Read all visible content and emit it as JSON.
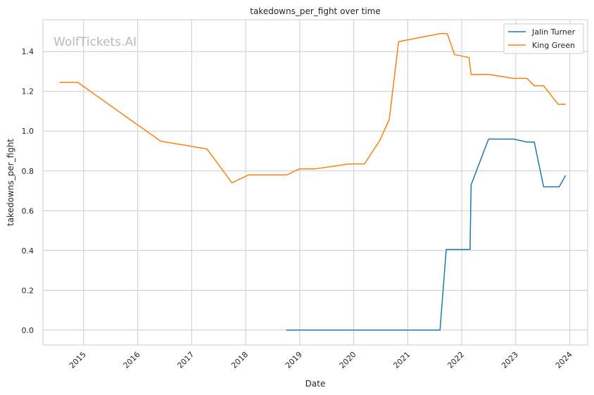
{
  "chart_data": {
    "type": "line",
    "title": "takedowns_per_fight over time",
    "xlabel": "Date",
    "ylabel": "takedowns_per_fight",
    "watermark": "WolfTickets.AI",
    "x_ticks": [
      "2015",
      "2016",
      "2017",
      "2018",
      "2019",
      "2020",
      "2021",
      "2022",
      "2023",
      "2024"
    ],
    "y_ticks": [
      "0.0",
      "0.2",
      "0.4",
      "0.6",
      "0.8",
      "1.0",
      "1.2",
      "1.4"
    ],
    "xlim": [
      "2014-04-01",
      "2024-05-01"
    ],
    "ylim": [
      -0.075,
      1.56
    ],
    "grid": true,
    "legend": "top-right",
    "series": [
      {
        "name": "Jalin Turner",
        "color": "#1f77b4",
        "points": [
          [
            "2018-10-06",
            0.0
          ],
          [
            "2019-04-01",
            0.0
          ],
          [
            "2020-01-01",
            0.0
          ],
          [
            "2021-01-01",
            0.0
          ],
          [
            "2021-08-07",
            0.0
          ],
          [
            "2021-09-18",
            0.405
          ],
          [
            "2022-02-26",
            0.405
          ],
          [
            "2022-03-05",
            0.73
          ],
          [
            "2022-07-01",
            0.96
          ],
          [
            "2022-12-17",
            0.96
          ],
          [
            "2023-03-18",
            0.945
          ],
          [
            "2023-05-06",
            0.945
          ],
          [
            "2023-07-08",
            0.72
          ],
          [
            "2023-10-21",
            0.72
          ],
          [
            "2023-12-02",
            0.775
          ]
        ]
      },
      {
        "name": "King Green",
        "color": "#ff7f0e",
        "points": [
          [
            "2014-07-26",
            1.245
          ],
          [
            "2014-11-22",
            1.245
          ],
          [
            "2016-06-04",
            0.95
          ],
          [
            "2017-04-15",
            0.91
          ],
          [
            "2017-09-30",
            0.74
          ],
          [
            "2018-01-20",
            0.78
          ],
          [
            "2018-10-06",
            0.78
          ],
          [
            "2018-12-29",
            0.81
          ],
          [
            "2019-04-13",
            0.81
          ],
          [
            "2019-11-30",
            0.835
          ],
          [
            "2020-03-14",
            0.835
          ],
          [
            "2020-06-27",
            0.955
          ],
          [
            "2020-08-29",
            1.06
          ],
          [
            "2020-10-31",
            1.45
          ],
          [
            "2021-08-07",
            1.49
          ],
          [
            "2021-09-25",
            1.49
          ],
          [
            "2021-11-13",
            1.385
          ],
          [
            "2022-02-19",
            1.37
          ],
          [
            "2022-03-05",
            1.285
          ],
          [
            "2022-07-02",
            1.285
          ],
          [
            "2022-12-17",
            1.265
          ],
          [
            "2023-03-18",
            1.265
          ],
          [
            "2023-05-06",
            1.228
          ],
          [
            "2023-07-08",
            1.228
          ],
          [
            "2023-10-14",
            1.135
          ],
          [
            "2023-12-02",
            1.135
          ]
        ]
      }
    ]
  }
}
